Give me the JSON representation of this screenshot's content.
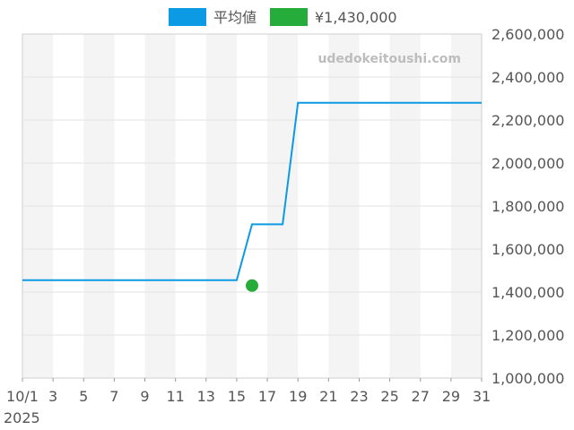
{
  "chart_data": {
    "type": "line",
    "watermark": "udedokeitoushi.com",
    "legend": {
      "placement": "top-center",
      "items": [
        {
          "label": "平均値",
          "color": "#0c9ae4",
          "kind": "line"
        },
        {
          "label": "¥1,430,000",
          "color": "#25ac3a",
          "kind": "point"
        }
      ]
    },
    "x_axis": {
      "min_day": 1,
      "max_day": 31,
      "tick_days": [
        1,
        3,
        5,
        7,
        9,
        11,
        13,
        15,
        17,
        19,
        21,
        23,
        25,
        27,
        29,
        31
      ],
      "tick_labels": [
        "10/1",
        "3",
        "5",
        "7",
        "9",
        "11",
        "13",
        "15",
        "17",
        "19",
        "21",
        "23",
        "25",
        "27",
        "29",
        "31"
      ],
      "year_label": "2025"
    },
    "y_axis": {
      "min": 1000000,
      "max": 2600000,
      "ticks": [
        1000000,
        1200000,
        1400000,
        1600000,
        1800000,
        2000000,
        2200000,
        2400000,
        2600000
      ],
      "tick_labels": [
        "1,000,000",
        "1,200,000",
        "1,400,000",
        "1,600,000",
        "1,800,000",
        "2,000,000",
        "2,200,000",
        "2,400,000",
        "2,600,000"
      ],
      "position": "right"
    },
    "grid": true,
    "alternating_bands": true,
    "series": [
      {
        "name": "平均値",
        "type": "line",
        "color": "#0c9ae4",
        "points": [
          {
            "day": 1,
            "y": 1455000
          },
          {
            "day": 15,
            "y": 1455000
          },
          {
            "day": 16,
            "y": 1715000
          },
          {
            "day": 18,
            "y": 1715000
          },
          {
            "day": 19,
            "y": 2280000
          },
          {
            "day": 31,
            "y": 2280000
          }
        ]
      },
      {
        "name": "¥1,430,000",
        "type": "scatter",
        "color": "#25ac3a",
        "points": [
          {
            "day": 16,
            "y": 1430000
          }
        ]
      }
    ]
  }
}
